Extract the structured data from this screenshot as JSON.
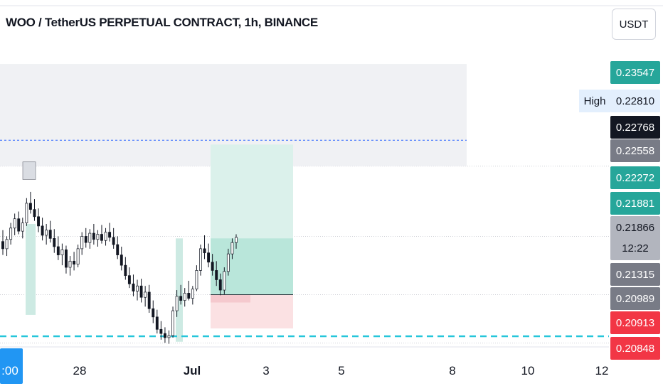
{
  "header": {
    "title": "WOO / TetherUS PERPETUAL CONTRACT, 1h, BINANCE",
    "currency_button": "USDT"
  },
  "chart_data": {
    "type": "candlestick",
    "symbol": "WOO / TetherUS PERPETUAL CONTRACT",
    "interval": "1h",
    "exchange": "BINANCE",
    "x_ticks": [
      ":00",
      "28",
      "Jul",
      "3",
      "5",
      "8",
      "10",
      "12"
    ],
    "ylim": [
      0.2081,
      0.2374
    ],
    "price_labels": [
      {
        "value": "0.23547",
        "bg": "#26a69a",
        "fg": "#ffffff"
      },
      {
        "value": "0.22810",
        "bg": "#e3effd",
        "fg": "#131722",
        "tag": "High"
      },
      {
        "value": "0.22768",
        "bg": "#131722",
        "fg": "#ffffff"
      },
      {
        "value": "0.22558",
        "bg": "#787b86",
        "fg": "#ffffff"
      },
      {
        "value": "0.22272",
        "bg": "#26a69a",
        "fg": "#ffffff"
      },
      {
        "value": "0.21881",
        "bg": "#26a69a",
        "fg": "#ffffff"
      },
      {
        "value": "0.21866",
        "bg": "#b2b5be",
        "fg": "#131722",
        "countdown": "12:22"
      },
      {
        "value": "0.21315",
        "bg": "#787b86",
        "fg": "#ffffff"
      },
      {
        "value": "0.20989",
        "bg": "#787b86",
        "fg": "#ffffff"
      },
      {
        "value": "0.20913",
        "bg": "#f23645",
        "fg": "#ffffff"
      },
      {
        "value": "0.20848",
        "bg": "#f23645",
        "fg": "#ffffff"
      }
    ],
    "levels": {
      "high_dashed": 0.2281,
      "support_dashed": 0.20913
    },
    "zones": [
      {
        "name": "resistance-zone",
        "from": 0.22558,
        "to": 0.23547
      },
      {
        "name": "long-target",
        "from": 0.21315,
        "to": 0.22768
      },
      {
        "name": "long-stop",
        "from": 0.20989,
        "to": 0.21315
      }
    ],
    "candles": [
      [
        0.2183,
        0.2194,
        0.217,
        0.2176
      ],
      [
        0.2176,
        0.2188,
        0.2169,
        0.2185
      ],
      [
        0.2185,
        0.2201,
        0.218,
        0.2196
      ],
      [
        0.2196,
        0.221,
        0.2189,
        0.2205
      ],
      [
        0.2205,
        0.2212,
        0.219,
        0.2193
      ],
      [
        0.2193,
        0.2206,
        0.2186,
        0.2201
      ],
      [
        0.2201,
        0.2225,
        0.2198,
        0.222
      ],
      [
        0.222,
        0.2231,
        0.221,
        0.2214
      ],
      [
        0.2214,
        0.2224,
        0.2203,
        0.2207
      ],
      [
        0.2207,
        0.2215,
        0.2192,
        0.2198
      ],
      [
        0.2198,
        0.2206,
        0.2184,
        0.2189
      ],
      [
        0.2189,
        0.22,
        0.218,
        0.2194
      ],
      [
        0.2194,
        0.2203,
        0.2182,
        0.2186
      ],
      [
        0.2186,
        0.2195,
        0.2172,
        0.2178
      ],
      [
        0.2178,
        0.2188,
        0.2165,
        0.217
      ],
      [
        0.217,
        0.2181,
        0.216,
        0.2175
      ],
      [
        0.2175,
        0.2179,
        0.2152,
        0.2158
      ],
      [
        0.2158,
        0.2169,
        0.215,
        0.2164
      ],
      [
        0.2164,
        0.2173,
        0.2155,
        0.2161
      ],
      [
        0.2161,
        0.218,
        0.2158,
        0.2176
      ],
      [
        0.2176,
        0.2192,
        0.217,
        0.2188
      ],
      [
        0.2188,
        0.2196,
        0.2177,
        0.2182
      ],
      [
        0.2182,
        0.2195,
        0.2176,
        0.2191
      ],
      [
        0.2191,
        0.22,
        0.218,
        0.2185
      ],
      [
        0.2185,
        0.2194,
        0.2178,
        0.219
      ],
      [
        0.219,
        0.2199,
        0.2181,
        0.2184
      ],
      [
        0.2184,
        0.2196,
        0.2179,
        0.2192
      ],
      [
        0.2192,
        0.2201,
        0.2183,
        0.2187
      ],
      [
        0.2187,
        0.2196,
        0.2176,
        0.218
      ],
      [
        0.218,
        0.2188,
        0.2166,
        0.217
      ],
      [
        0.217,
        0.2178,
        0.2155,
        0.216
      ],
      [
        0.216,
        0.2168,
        0.2146,
        0.215
      ],
      [
        0.215,
        0.2158,
        0.2138,
        0.2142
      ],
      [
        0.2142,
        0.2151,
        0.213,
        0.2135
      ],
      [
        0.2135,
        0.2146,
        0.2126,
        0.214
      ],
      [
        0.214,
        0.2147,
        0.2124,
        0.2129
      ],
      [
        0.2129,
        0.214,
        0.212,
        0.2134
      ],
      [
        0.2134,
        0.2141,
        0.2114,
        0.2118
      ],
      [
        0.2118,
        0.2126,
        0.2104,
        0.211
      ],
      [
        0.211,
        0.2117,
        0.2094,
        0.2098
      ],
      [
        0.2098,
        0.2106,
        0.2088,
        0.2094
      ],
      [
        0.2094,
        0.21,
        0.2085,
        0.209
      ],
      [
        0.209,
        0.2097,
        0.2084,
        0.2092
      ],
      [
        0.2092,
        0.212,
        0.209,
        0.2116
      ],
      [
        0.2116,
        0.2136,
        0.211,
        0.213
      ],
      [
        0.213,
        0.2141,
        0.2122,
        0.2126
      ],
      [
        0.2126,
        0.2138,
        0.212,
        0.2133
      ],
      [
        0.2133,
        0.2145,
        0.2126,
        0.2128
      ],
      [
        0.2128,
        0.214,
        0.2122,
        0.2137
      ],
      [
        0.2137,
        0.216,
        0.2135,
        0.2155
      ],
      [
        0.2155,
        0.218,
        0.215,
        0.2176
      ],
      [
        0.2176,
        0.2189,
        0.2166,
        0.2172
      ],
      [
        0.2172,
        0.2181,
        0.2158,
        0.2163
      ],
      [
        0.2163,
        0.2171,
        0.215,
        0.2155
      ],
      [
        0.2155,
        0.2164,
        0.214,
        0.2146
      ],
      [
        0.2146,
        0.2152,
        0.2131,
        0.2136
      ],
      [
        0.2136,
        0.2158,
        0.2132,
        0.2154
      ],
      [
        0.2154,
        0.2176,
        0.215,
        0.2171
      ],
      [
        0.2171,
        0.2186,
        0.2166,
        0.2182
      ],
      [
        0.2182,
        0.219,
        0.2176,
        0.2187
      ]
    ]
  }
}
